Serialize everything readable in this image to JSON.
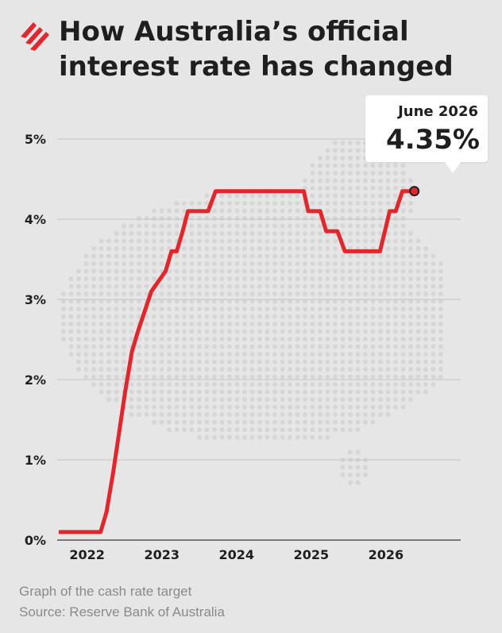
{
  "header": {
    "title": "How Australia’s official interest rate has changed",
    "logo_icon": "sbs-wing-logo",
    "accent_color": "#e3262b"
  },
  "callout": {
    "date": "June 2026",
    "value": "4.35%"
  },
  "footer": {
    "caption": "Graph of the cash rate target",
    "source": "Source: Reserve Bank of Australia"
  },
  "chart_data": {
    "type": "line",
    "title": "How Australia’s official interest rate has changed",
    "xlabel": "",
    "ylabel": "",
    "xlim": [
      2021.6,
      2027.0
    ],
    "ylim": [
      0,
      5
    ],
    "x_ticks": [
      {
        "value": 2022,
        "label": "2022"
      },
      {
        "value": 2023,
        "label": "2023"
      },
      {
        "value": 2024,
        "label": "2024"
      },
      {
        "value": 2025,
        "label": "2025"
      },
      {
        "value": 2026,
        "label": "2026"
      }
    ],
    "y_ticks": [
      {
        "value": 0,
        "label": "0%"
      },
      {
        "value": 1,
        "label": "1%"
      },
      {
        "value": 2,
        "label": "2%"
      },
      {
        "value": 3,
        "label": "3%"
      },
      {
        "value": 4,
        "label": "4%"
      },
      {
        "value": 5,
        "label": "5%"
      }
    ],
    "grid": true,
    "line_color": "#e3262b",
    "series": [
      {
        "points": [
          [
            2021.62,
            0.1
          ],
          [
            2022.08,
            0.1
          ],
          [
            2022.18,
            0.1
          ],
          [
            2022.26,
            0.35
          ],
          [
            2022.35,
            0.85
          ],
          [
            2022.43,
            1.35
          ],
          [
            2022.51,
            1.85
          ],
          [
            2022.6,
            2.35
          ],
          [
            2022.68,
            2.6
          ],
          [
            2022.77,
            2.85
          ],
          [
            2022.86,
            3.1
          ],
          [
            2022.95,
            3.22
          ],
          [
            2023.05,
            3.35
          ],
          [
            2023.13,
            3.6
          ],
          [
            2023.2,
            3.6
          ],
          [
            2023.28,
            3.85
          ],
          [
            2023.35,
            4.1
          ],
          [
            2023.55,
            4.1
          ],
          [
            2023.62,
            4.1
          ],
          [
            2023.72,
            4.35
          ],
          [
            2024.9,
            4.35
          ],
          [
            2024.96,
            4.1
          ],
          [
            2025.12,
            4.1
          ],
          [
            2025.2,
            3.85
          ],
          [
            2025.35,
            3.85
          ],
          [
            2025.45,
            3.6
          ],
          [
            2025.92,
            3.6
          ],
          [
            2026.05,
            4.1
          ],
          [
            2026.13,
            4.1
          ],
          [
            2026.22,
            4.35
          ],
          [
            2026.38,
            4.35
          ]
        ]
      }
    ],
    "highlight": {
      "x": 2026.38,
      "y": 4.35
    }
  }
}
